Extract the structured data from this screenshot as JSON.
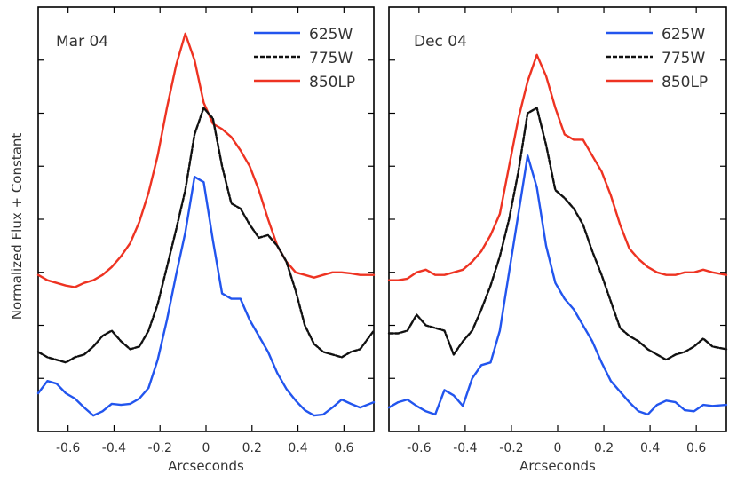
{
  "figure": {
    "ylabel": "Normalized Flux + Constant"
  },
  "chart_data": [
    {
      "type": "line",
      "title": "Mar 04",
      "xlabel": "Arcseconds",
      "ylabel": "Normalized Flux + Constant",
      "xlim": [
        -0.73,
        0.73
      ],
      "ylim": [
        0,
        8
      ],
      "xticks": [
        -0.6,
        -0.4,
        -0.2,
        0,
        0.2,
        0.4,
        0.6
      ],
      "xtick_labels": [
        "-0.6",
        "-0.4",
        "-0.2",
        "0",
        "0.2",
        "0.4",
        "0.6"
      ],
      "yticks": [
        1,
        2,
        3,
        4,
        5,
        6,
        7
      ],
      "legend_position": "top-right",
      "series": [
        {
          "name": "625W",
          "color": "#2255ee",
          "dash": "",
          "x": [
            -0.73,
            -0.69,
            -0.65,
            -0.61,
            -0.57,
            -0.53,
            -0.49,
            -0.45,
            -0.41,
            -0.37,
            -0.33,
            -0.29,
            -0.25,
            -0.21,
            -0.17,
            -0.13,
            -0.09,
            -0.05,
            -0.01,
            0.03,
            0.07,
            0.11,
            0.15,
            0.19,
            0.23,
            0.27,
            0.31,
            0.35,
            0.39,
            0.43,
            0.47,
            0.51,
            0.55,
            0.59,
            0.63,
            0.67,
            0.73
          ],
          "y": [
            0.72,
            0.95,
            0.9,
            0.72,
            0.62,
            0.45,
            0.3,
            0.38,
            0.52,
            0.5,
            0.52,
            0.62,
            0.82,
            1.35,
            2.1,
            2.95,
            3.75,
            4.8,
            4.7,
            3.6,
            2.6,
            2.5,
            2.5,
            2.1,
            1.8,
            1.5,
            1.1,
            0.8,
            0.58,
            0.4,
            0.3,
            0.32,
            0.45,
            0.6,
            0.52,
            0.45,
            0.55
          ]
        },
        {
          "name": "775W",
          "color": "#111111",
          "dash": "5,2",
          "x": [
            -0.73,
            -0.69,
            -0.65,
            -0.61,
            -0.57,
            -0.53,
            -0.49,
            -0.45,
            -0.41,
            -0.37,
            -0.33,
            -0.29,
            -0.25,
            -0.21,
            -0.17,
            -0.13,
            -0.09,
            -0.05,
            -0.01,
            0.03,
            0.07,
            0.11,
            0.15,
            0.19,
            0.23,
            0.27,
            0.31,
            0.35,
            0.39,
            0.43,
            0.47,
            0.51,
            0.55,
            0.59,
            0.63,
            0.67,
            0.73
          ],
          "y": [
            1.5,
            1.4,
            1.35,
            1.3,
            1.4,
            1.45,
            1.6,
            1.8,
            1.9,
            1.7,
            1.55,
            1.6,
            1.9,
            2.4,
            3.1,
            3.8,
            4.55,
            5.6,
            6.1,
            5.9,
            5.0,
            4.3,
            4.2,
            3.9,
            3.65,
            3.7,
            3.5,
            3.2,
            2.65,
            2.0,
            1.65,
            1.5,
            1.45,
            1.4,
            1.5,
            1.55,
            1.9
          ]
        },
        {
          "name": "850LP",
          "color": "#ee3322",
          "dash": "",
          "x": [
            -0.73,
            -0.69,
            -0.65,
            -0.61,
            -0.57,
            -0.53,
            -0.49,
            -0.45,
            -0.41,
            -0.37,
            -0.33,
            -0.29,
            -0.25,
            -0.21,
            -0.17,
            -0.13,
            -0.09,
            -0.05,
            -0.01,
            0.03,
            0.07,
            0.11,
            0.15,
            0.19,
            0.23,
            0.27,
            0.31,
            0.35,
            0.39,
            0.43,
            0.47,
            0.51,
            0.55,
            0.59,
            0.63,
            0.67,
            0.73
          ],
          "y": [
            2.95,
            2.85,
            2.8,
            2.75,
            2.72,
            2.8,
            2.85,
            2.95,
            3.1,
            3.3,
            3.55,
            3.95,
            4.5,
            5.2,
            6.1,
            6.9,
            7.5,
            7.0,
            6.2,
            5.8,
            5.7,
            5.55,
            5.3,
            5.0,
            4.55,
            4.0,
            3.5,
            3.2,
            3.0,
            2.95,
            2.9,
            2.95,
            3.0,
            3.0,
            2.98,
            2.95,
            2.95
          ]
        }
      ]
    },
    {
      "type": "line",
      "title": "Dec 04",
      "xlabel": "Arcseconds",
      "ylabel": "Normalized Flux + Constant",
      "xlim": [
        -0.73,
        0.73
      ],
      "ylim": [
        0,
        8
      ],
      "xticks": [
        -0.6,
        -0.4,
        -0.2,
        0,
        0.2,
        0.4,
        0.6
      ],
      "xtick_labels": [
        "-0.6",
        "-0.4",
        "-0.2",
        "0",
        "0.2",
        "0.4",
        "0.6"
      ],
      "yticks": [
        1,
        2,
        3,
        4,
        5,
        6,
        7
      ],
      "legend_position": "top-right",
      "series": [
        {
          "name": "625W",
          "color": "#2255ee",
          "dash": "",
          "x": [
            -0.73,
            -0.69,
            -0.65,
            -0.61,
            -0.57,
            -0.53,
            -0.49,
            -0.45,
            -0.41,
            -0.37,
            -0.33,
            -0.29,
            -0.25,
            -0.21,
            -0.17,
            -0.13,
            -0.09,
            -0.05,
            -0.01,
            0.03,
            0.07,
            0.11,
            0.15,
            0.19,
            0.23,
            0.27,
            0.31,
            0.35,
            0.39,
            0.43,
            0.47,
            0.51,
            0.55,
            0.59,
            0.63,
            0.67,
            0.73
          ],
          "y": [
            0.45,
            0.55,
            0.6,
            0.48,
            0.38,
            0.32,
            0.78,
            0.68,
            0.48,
            1.0,
            1.25,
            1.3,
            1.9,
            3.0,
            4.1,
            5.2,
            4.6,
            3.5,
            2.8,
            2.5,
            2.3,
            2.0,
            1.7,
            1.3,
            0.95,
            0.75,
            0.55,
            0.38,
            0.32,
            0.5,
            0.58,
            0.55,
            0.4,
            0.38,
            0.5,
            0.48,
            0.5
          ]
        },
        {
          "name": "775W",
          "color": "#111111",
          "dash": "5,2",
          "x": [
            -0.73,
            -0.69,
            -0.65,
            -0.61,
            -0.57,
            -0.53,
            -0.49,
            -0.45,
            -0.41,
            -0.37,
            -0.33,
            -0.29,
            -0.25,
            -0.21,
            -0.17,
            -0.13,
            -0.09,
            -0.05,
            -0.01,
            0.03,
            0.07,
            0.11,
            0.15,
            0.19,
            0.23,
            0.27,
            0.31,
            0.35,
            0.39,
            0.43,
            0.47,
            0.51,
            0.55,
            0.59,
            0.63,
            0.67,
            0.73
          ],
          "y": [
            1.85,
            1.85,
            1.9,
            2.2,
            2.0,
            1.95,
            1.9,
            1.45,
            1.7,
            1.9,
            2.3,
            2.75,
            3.3,
            4.0,
            4.9,
            6.0,
            6.1,
            5.4,
            4.55,
            4.4,
            4.2,
            3.9,
            3.4,
            2.95,
            2.45,
            1.95,
            1.8,
            1.7,
            1.55,
            1.45,
            1.35,
            1.45,
            1.5,
            1.6,
            1.75,
            1.6,
            1.55
          ]
        },
        {
          "name": "850LP",
          "color": "#ee3322",
          "dash": "",
          "x": [
            -0.73,
            -0.69,
            -0.65,
            -0.61,
            -0.57,
            -0.53,
            -0.49,
            -0.45,
            -0.41,
            -0.37,
            -0.33,
            -0.29,
            -0.25,
            -0.21,
            -0.17,
            -0.13,
            -0.09,
            -0.05,
            -0.01,
            0.03,
            0.07,
            0.11,
            0.15,
            0.19,
            0.23,
            0.27,
            0.31,
            0.35,
            0.39,
            0.43,
            0.47,
            0.51,
            0.55,
            0.59,
            0.63,
            0.67,
            0.73
          ],
          "y": [
            2.85,
            2.85,
            2.88,
            3.0,
            3.05,
            2.95,
            2.95,
            3.0,
            3.05,
            3.2,
            3.4,
            3.7,
            4.1,
            5.0,
            5.9,
            6.6,
            7.1,
            6.7,
            6.1,
            5.6,
            5.5,
            5.5,
            5.2,
            4.9,
            4.45,
            3.9,
            3.45,
            3.25,
            3.1,
            3.0,
            2.95,
            2.95,
            3.0,
            3.0,
            3.05,
            3.0,
            2.95
          ]
        }
      ]
    }
  ]
}
